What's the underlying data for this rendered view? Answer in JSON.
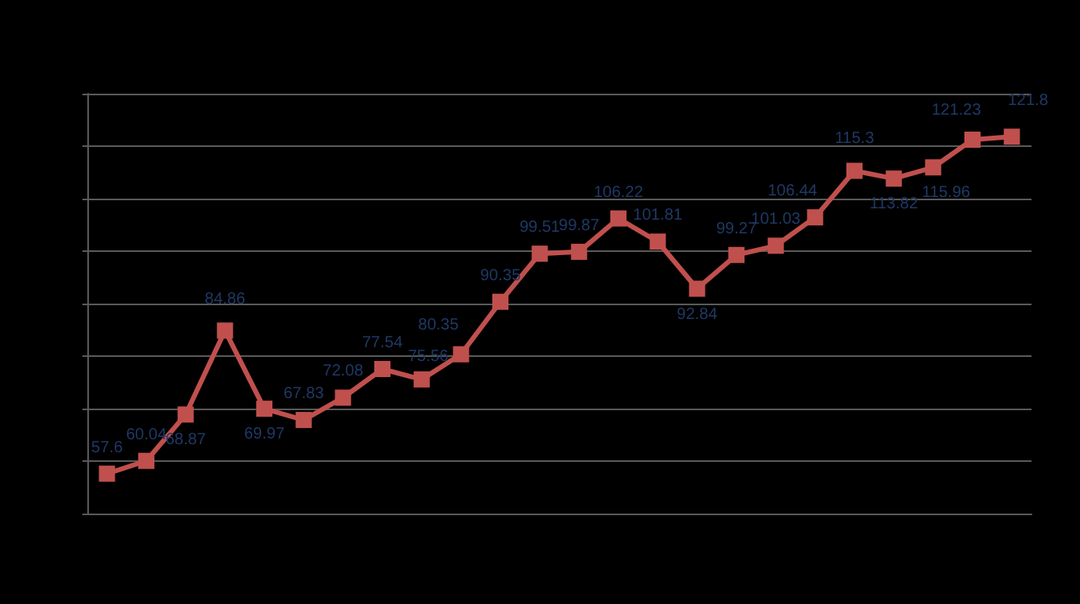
{
  "chart_data": {
    "type": "line",
    "categories": [
      null,
      null,
      null,
      null,
      null,
      null,
      null,
      null,
      null,
      null,
      null,
      null,
      null,
      null,
      null,
      null,
      null,
      null,
      null,
      null,
      null,
      null,
      null,
      null
    ],
    "series": [
      {
        "color": "#c0504d",
        "values": [
          57.6,
          60.04,
          68.87,
          84.86,
          69.97,
          67.83,
          72.08,
          77.54,
          75.56,
          80.35,
          90.35,
          99.51,
          99.87,
          106.22,
          101.81,
          92.84,
          99.27,
          101.03,
          106.44,
          115.3,
          113.82,
          115.96,
          121.23,
          121.8
        ]
      }
    ],
    "ylim": [
      50,
      130
    ],
    "yticks": [
      {
        "value": 50,
        "label": null
      },
      {
        "value": 60,
        "label": null
      },
      {
        "value": 70,
        "label": null
      },
      {
        "value": 80,
        "label": null
      },
      {
        "value": 90,
        "label": null
      },
      {
        "value": 100,
        "label": null
      },
      {
        "value": 110,
        "label": null
      },
      {
        "value": 120,
        "label": null
      },
      {
        "value": 130,
        "label": null
      }
    ],
    "grid": "y",
    "marker": "square",
    "line_style": "solid",
    "data_labels": true
  }
}
